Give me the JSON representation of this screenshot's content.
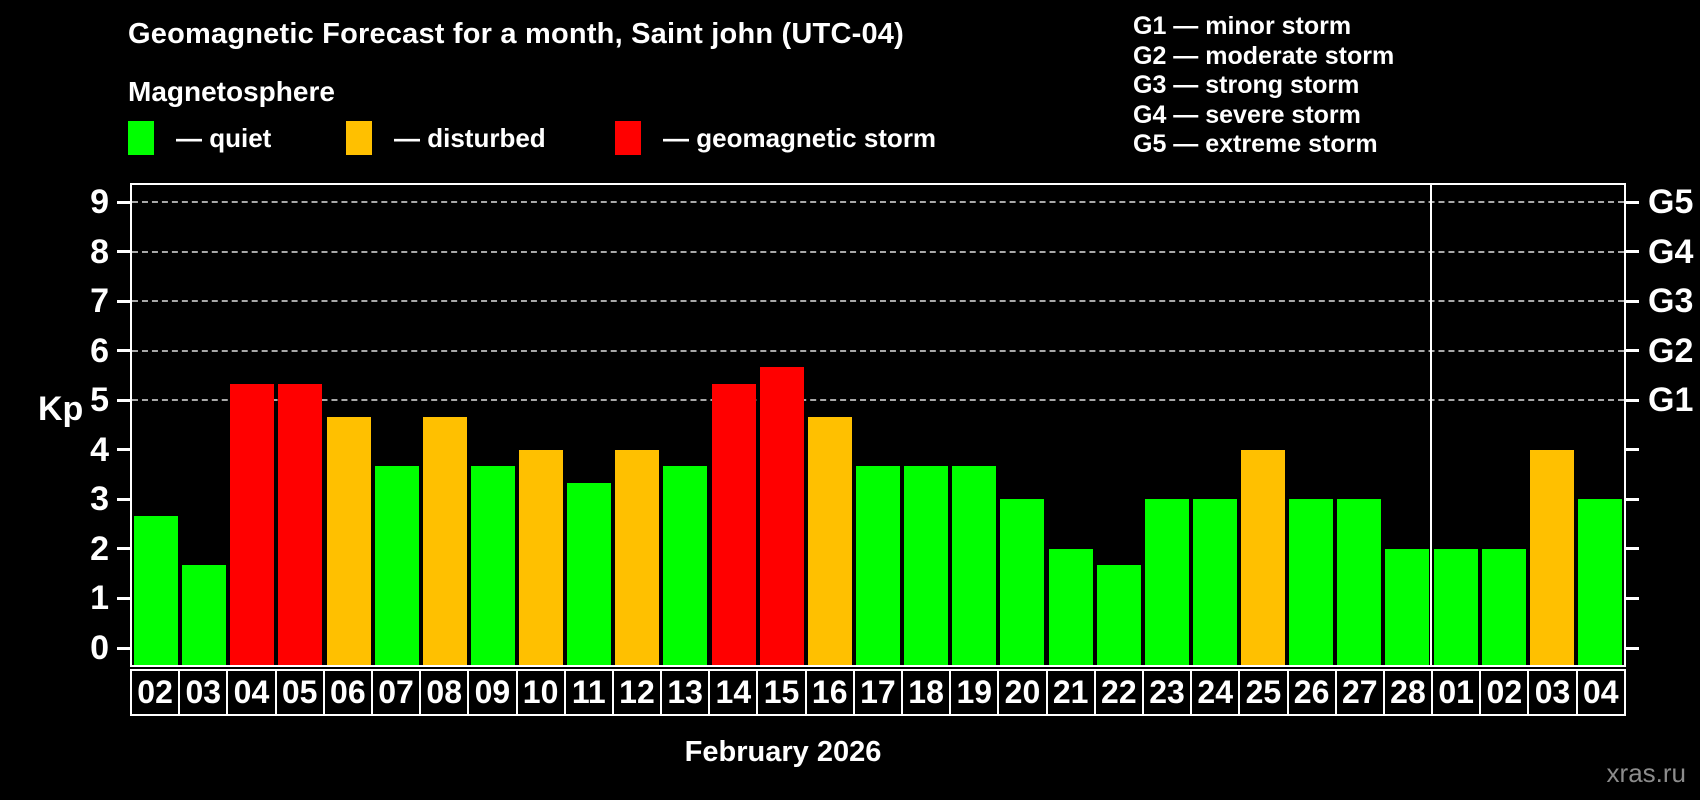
{
  "header": {
    "title": "Geomagnetic Forecast for a month, Saint john (UTC-04)",
    "subtitle": "Magnetosphere"
  },
  "magnetosphere_legend": [
    {
      "key": "quiet",
      "label": "— quiet",
      "color": "#00ff00"
    },
    {
      "key": "disturbed",
      "label": "— disturbed",
      "color": "#ffc000"
    },
    {
      "key": "storm",
      "label": "— geomagnetic storm",
      "color": "#ff0000"
    }
  ],
  "g_scale_legend": [
    "G1 — minor storm",
    "G2 — moderate storm",
    "G3 — strong storm",
    "G4 — severe storm",
    "G5 — extreme storm"
  ],
  "y_axis": {
    "label": "Kp",
    "ticks": [
      "0",
      "1",
      "2",
      "3",
      "4",
      "5",
      "6",
      "7",
      "8",
      "9"
    ]
  },
  "right_axis_labels": [
    {
      "kp": 5,
      "label": "G1"
    },
    {
      "kp": 6,
      "label": "G2"
    },
    {
      "kp": 7,
      "label": "G3"
    },
    {
      "kp": 8,
      "label": "G4"
    },
    {
      "kp": 9,
      "label": "G5"
    }
  ],
  "x_axis": {
    "caption": "February 2026"
  },
  "watermark": "xras.ru",
  "chart_data": {
    "type": "bar",
    "title": "Geomagnetic Forecast for a month, Saint john (UTC-04)",
    "xlabel": "February 2026",
    "ylabel": "Kp",
    "ylim": [
      0,
      9
    ],
    "grid": "horizontal dashed gridlines at Kp 5,6,7,8,9",
    "legend_position": "top-left",
    "gridlines_at": [
      5,
      6,
      7,
      8,
      9
    ],
    "categories": [
      "02",
      "03",
      "04",
      "05",
      "06",
      "07",
      "08",
      "09",
      "10",
      "11",
      "12",
      "13",
      "14",
      "15",
      "16",
      "17",
      "18",
      "19",
      "20",
      "21",
      "22",
      "23",
      "24",
      "25",
      "26",
      "27",
      "28",
      "01",
      "02",
      "03",
      "04"
    ],
    "values": [
      2.67,
      1.67,
      5.33,
      5.33,
      4.67,
      3.67,
      4.67,
      3.67,
      4,
      3.33,
      4,
      3.67,
      5.33,
      5.67,
      4.67,
      3.67,
      3.67,
      3.67,
      3,
      2,
      1.67,
      3,
      3,
      4,
      3,
      3,
      2,
      2,
      2,
      4,
      3
    ],
    "levels": [
      "quiet",
      "quiet",
      "storm",
      "storm",
      "disturbed",
      "quiet",
      "disturbed",
      "quiet",
      "disturbed",
      "quiet",
      "disturbed",
      "quiet",
      "storm",
      "storm",
      "disturbed",
      "quiet",
      "quiet",
      "quiet",
      "quiet",
      "quiet",
      "quiet",
      "quiet",
      "quiet",
      "disturbed",
      "quiet",
      "quiet",
      "quiet",
      "quiet",
      "quiet",
      "disturbed",
      "quiet"
    ],
    "level_colors": {
      "quiet": "#00ff00",
      "disturbed": "#ffc000",
      "storm": "#ff0000"
    },
    "month_separator_after_index": 26,
    "months": {
      "feb_indices": "0-26",
      "mar_indices": "27-30"
    }
  }
}
